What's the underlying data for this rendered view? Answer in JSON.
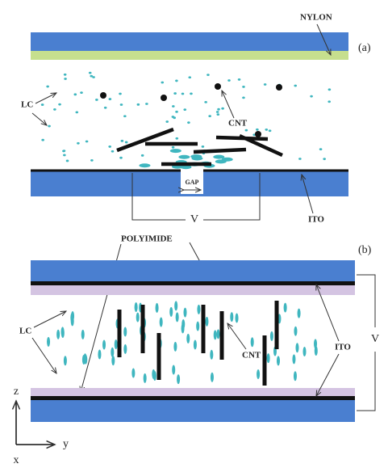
{
  "panel_a": {
    "tag": "(a)",
    "nylon": "NYLON",
    "lc": "LC",
    "cnt": "CNT",
    "gap": "GAP",
    "voltage": "V",
    "ito": "ITO"
  },
  "panel_b": {
    "tag": "(b)",
    "polyimide": "POLYIMIDE",
    "lc": "LC",
    "cnt": "CNT",
    "voltage": "V",
    "ito": "ITO"
  },
  "axes": {
    "z": "z",
    "y": "y",
    "x": "x"
  }
}
